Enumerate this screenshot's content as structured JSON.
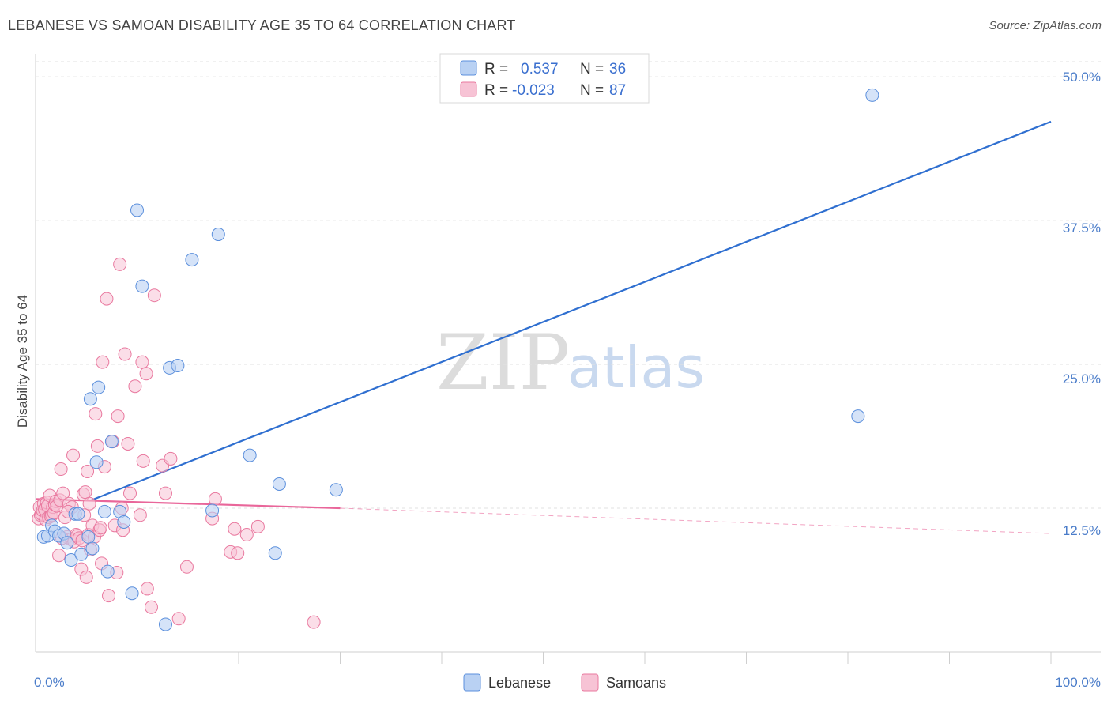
{
  "title": "LEBANESE VS SAMOAN DISABILITY AGE 35 TO 64 CORRELATION CHART",
  "source": "Source: ZipAtlas.com",
  "watermark": {
    "zip": "ZIP",
    "atlas": "atlas"
  },
  "colors": {
    "lebanese": "#5b8fdc",
    "lebanese_fill": "#b9d1f3",
    "samoan": "#e9799f",
    "samoan_fill": "#f7c3d5",
    "trend_lebanese": "#2f6fd0",
    "trend_samoan": "#e9669a"
  },
  "legend": {
    "rows": [
      {
        "r_label": "R =",
        "r_value": "0.537",
        "n_label": "N =",
        "n_value": "36"
      },
      {
        "r_label": "R =",
        "r_value": "-0.023",
        "n_label": "N =",
        "n_value": "87"
      }
    ]
  },
  "chart_data": {
    "type": "scatter",
    "title": "LEBANESE VS SAMOAN DISABILITY AGE 35 TO 64 CORRELATION CHART",
    "xlabel": "",
    "ylabel": "Disability Age 35 to 64",
    "xlim": [
      0,
      100
    ],
    "ylim": [
      0,
      52
    ],
    "x_tick_labels": [
      "0.0%",
      "100.0%"
    ],
    "y_ticks": [
      12.5,
      25.0,
      37.5,
      50.0
    ],
    "y_tick_labels": [
      "12.5%",
      "25.0%",
      "37.5%",
      "50.0%"
    ],
    "series": [
      {
        "name": "Lebanese",
        "points": [
          [
            0.8,
            10.0
          ],
          [
            1.2,
            10.1
          ],
          [
            1.6,
            11.0
          ],
          [
            1.9,
            10.5
          ],
          [
            2.3,
            10.1
          ],
          [
            2.8,
            10.3
          ],
          [
            3.1,
            9.5
          ],
          [
            3.5,
            8.0
          ],
          [
            3.9,
            12.0
          ],
          [
            4.2,
            12.0
          ],
          [
            4.5,
            8.5
          ],
          [
            5.2,
            10.0
          ],
          [
            5.4,
            22.0
          ],
          [
            5.6,
            9.0
          ],
          [
            6.0,
            16.5
          ],
          [
            6.2,
            23.0
          ],
          [
            6.8,
            12.2
          ],
          [
            7.1,
            7.0
          ],
          [
            7.5,
            18.3
          ],
          [
            8.3,
            12.2
          ],
          [
            8.7,
            11.3
          ],
          [
            9.5,
            5.1
          ],
          [
            10.0,
            38.4
          ],
          [
            10.5,
            31.8
          ],
          [
            12.8,
            2.4
          ],
          [
            13.2,
            24.7
          ],
          [
            14.0,
            24.9
          ],
          [
            15.4,
            34.1
          ],
          [
            17.4,
            12.3
          ],
          [
            18.0,
            36.3
          ],
          [
            21.1,
            17.1
          ],
          [
            23.6,
            8.6
          ],
          [
            24.0,
            14.6
          ],
          [
            29.6,
            14.1
          ],
          [
            81.0,
            20.5
          ],
          [
            82.4,
            48.4
          ]
        ]
      },
      {
        "name": "Samoans",
        "points": [
          [
            0.3,
            11.6
          ],
          [
            0.4,
            12.6
          ],
          [
            0.5,
            11.9
          ],
          [
            0.6,
            12.0
          ],
          [
            0.7,
            12.3
          ],
          [
            0.8,
            12.9
          ],
          [
            0.9,
            12.4
          ],
          [
            1.0,
            11.5
          ],
          [
            1.1,
            13.0
          ],
          [
            1.2,
            12.7
          ],
          [
            1.3,
            11.7
          ],
          [
            1.4,
            13.6
          ],
          [
            1.5,
            11.8
          ],
          [
            1.6,
            11.9
          ],
          [
            1.7,
            12.6
          ],
          [
            1.8,
            12.1
          ],
          [
            1.9,
            12.8
          ],
          [
            2.0,
            13.1
          ],
          [
            2.1,
            12.7
          ],
          [
            2.3,
            8.4
          ],
          [
            2.4,
            13.2
          ],
          [
            2.5,
            15.9
          ],
          [
            2.7,
            13.8
          ],
          [
            2.9,
            11.7
          ],
          [
            3.1,
            10.0
          ],
          [
            3.3,
            12.9
          ],
          [
            3.5,
            9.8
          ],
          [
            3.6,
            12.6
          ],
          [
            3.7,
            17.1
          ],
          [
            3.8,
            9.6
          ],
          [
            4.0,
            10.2
          ],
          [
            4.1,
            10.1
          ],
          [
            4.3,
            9.9
          ],
          [
            4.5,
            7.2
          ],
          [
            4.6,
            9.7
          ],
          [
            4.7,
            13.7
          ],
          [
            4.9,
            13.9
          ],
          [
            5.0,
            6.5
          ],
          [
            5.1,
            15.7
          ],
          [
            5.2,
            10.2
          ],
          [
            5.4,
            8.9
          ],
          [
            5.6,
            11.0
          ],
          [
            5.8,
            10.0
          ],
          [
            5.9,
            20.7
          ],
          [
            6.1,
            17.9
          ],
          [
            6.3,
            10.6
          ],
          [
            6.5,
            7.7
          ],
          [
            6.6,
            25.2
          ],
          [
            6.8,
            16.1
          ],
          [
            7.0,
            30.7
          ],
          [
            7.2,
            4.9
          ],
          [
            7.6,
            18.3
          ],
          [
            7.8,
            11.0
          ],
          [
            8.0,
            6.9
          ],
          [
            8.1,
            20.5
          ],
          [
            8.3,
            33.7
          ],
          [
            8.5,
            12.5
          ],
          [
            8.6,
            10.6
          ],
          [
            8.8,
            25.9
          ],
          [
            9.1,
            18.1
          ],
          [
            9.3,
            13.8
          ],
          [
            9.8,
            23.1
          ],
          [
            10.3,
            11.9
          ],
          [
            10.5,
            25.2
          ],
          [
            10.6,
            16.6
          ],
          [
            10.9,
            24.2
          ],
          [
            11.0,
            5.5
          ],
          [
            11.4,
            3.9
          ],
          [
            11.7,
            31.0
          ],
          [
            12.5,
            16.2
          ],
          [
            12.8,
            13.8
          ],
          [
            13.3,
            16.8
          ],
          [
            14.1,
            2.9
          ],
          [
            14.9,
            7.4
          ],
          [
            17.4,
            11.6
          ],
          [
            17.7,
            13.3
          ],
          [
            19.2,
            8.7
          ],
          [
            19.6,
            10.7
          ],
          [
            19.9,
            8.6
          ],
          [
            20.8,
            10.2
          ],
          [
            21.9,
            10.9
          ],
          [
            27.4,
            2.6
          ],
          [
            5.3,
            12.9
          ],
          [
            6.4,
            10.8
          ],
          [
            3.2,
            12.2
          ],
          [
            2.6,
            9.9
          ],
          [
            4.8,
            11.9
          ]
        ]
      }
    ],
    "trendlines": [
      {
        "name": "Lebanese",
        "x": [
          5.5,
          100
        ],
        "y": [
          13.2,
          46.1
        ],
        "style": "solid"
      },
      {
        "name": "Samoans",
        "x": [
          0,
          30
        ],
        "y": [
          13.3,
          12.5
        ],
        "style": "solid"
      },
      {
        "name": "Samoans",
        "x": [
          30,
          100
        ],
        "y": [
          12.5,
          10.3
        ],
        "style": "dashed"
      }
    ],
    "legend": [
      "Lebanese",
      "Samoans"
    ]
  }
}
